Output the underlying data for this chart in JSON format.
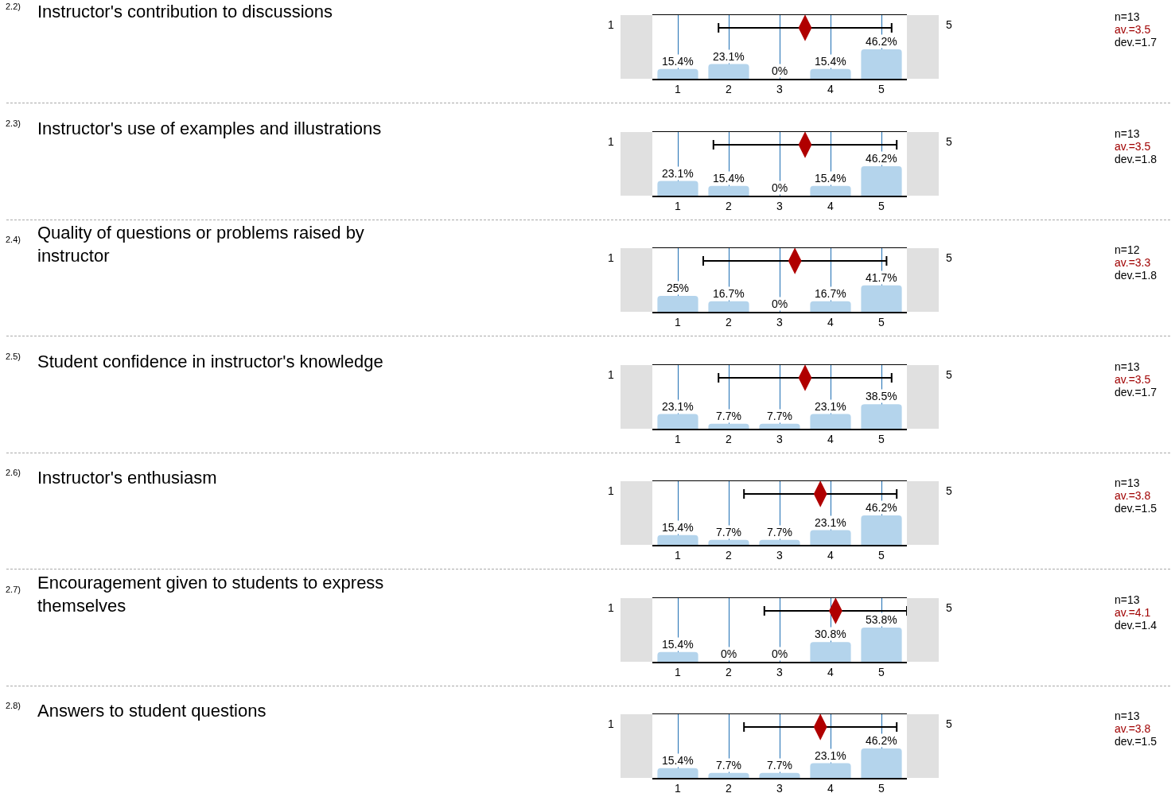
{
  "chart_data": [
    {
      "type": "bar",
      "annotations": [
        "2.2)",
        "Instructor's contribution to discussions",
        "1",
        "5",
        "n=13",
        "av.=3.5",
        "dev.=1.7"
      ],
      "x": [
        1,
        2,
        3,
        4,
        5
      ],
      "xlim": [
        0.5,
        5.5
      ],
      "xticks": [
        1,
        2,
        3,
        4,
        5
      ],
      "ylim": [
        0,
        100
      ],
      "grid": "x",
      "tick_labels": "x",
      "series": [
        {
          "type": "bar",
          "color": "#b4d4ec",
          "values": [
            15.4,
            23.1,
            0,
            15.4,
            46.2
          ],
          "value_labels": [
            "15.4%",
            "23.1%",
            "0%",
            "15.4%",
            "46.2%"
          ]
        },
        {
          "type": "scatter",
          "color": "#b00000",
          "x": [
            3.5
          ],
          "values": [
            80
          ],
          "xerrors": [
            1.7
          ]
        }
      ]
    },
    {
      "type": "bar",
      "annotations": [
        "2.3)",
        "Instructor's use of examples and illustrations",
        "1",
        "5",
        "n=13",
        "av.=3.5",
        "dev.=1.8"
      ],
      "x": [
        1,
        2,
        3,
        4,
        5
      ],
      "xlim": [
        0.5,
        5.5
      ],
      "xticks": [
        1,
        2,
        3,
        4,
        5
      ],
      "ylim": [
        0,
        100
      ],
      "grid": "x",
      "tick_labels": "x",
      "series": [
        {
          "type": "bar",
          "color": "#b4d4ec",
          "values": [
            23.1,
            15.4,
            0,
            15.4,
            46.2
          ],
          "value_labels": [
            "23.1%",
            "15.4%",
            "0%",
            "15.4%",
            "46.2%"
          ]
        },
        {
          "type": "scatter",
          "color": "#b00000",
          "x": [
            3.5
          ],
          "values": [
            80
          ],
          "xerrors": [
            1.8
          ]
        }
      ]
    },
    {
      "type": "bar",
      "annotations": [
        "2.4)",
        "Quality of questions or problems raised by instructor",
        "1",
        "5",
        "n=12",
        "av.=3.3",
        "dev.=1.8"
      ],
      "x": [
        1,
        2,
        3,
        4,
        5
      ],
      "xlim": [
        0.5,
        5.5
      ],
      "xticks": [
        1,
        2,
        3,
        4,
        5
      ],
      "ylim": [
        0,
        100
      ],
      "grid": "x",
      "tick_labels": "x",
      "series": [
        {
          "type": "bar",
          "color": "#b4d4ec",
          "values": [
            25,
            16.7,
            0,
            16.7,
            41.7
          ],
          "value_labels": [
            "25%",
            "16.7%",
            "0%",
            "16.7%",
            "41.7%"
          ]
        },
        {
          "type": "scatter",
          "color": "#b00000",
          "x": [
            3.3
          ],
          "values": [
            80
          ],
          "xerrors": [
            1.8
          ]
        }
      ]
    },
    {
      "type": "bar",
      "annotations": [
        "2.5)",
        "Student confidence in instructor's knowledge",
        "1",
        "5",
        "n=13",
        "av.=3.5",
        "dev.=1.7"
      ],
      "x": [
        1,
        2,
        3,
        4,
        5
      ],
      "xlim": [
        0.5,
        5.5
      ],
      "xticks": [
        1,
        2,
        3,
        4,
        5
      ],
      "ylim": [
        0,
        100
      ],
      "grid": "x",
      "tick_labels": "x",
      "series": [
        {
          "type": "bar",
          "color": "#b4d4ec",
          "values": [
            23.1,
            7.7,
            7.7,
            23.1,
            38.5
          ],
          "value_labels": [
            "23.1%",
            "7.7%",
            "7.7%",
            "23.1%",
            "38.5%"
          ]
        },
        {
          "type": "scatter",
          "color": "#b00000",
          "x": [
            3.5
          ],
          "values": [
            80
          ],
          "xerrors": [
            1.7
          ]
        }
      ]
    },
    {
      "type": "bar",
      "annotations": [
        "2.6)",
        "Instructor's enthusiasm",
        "1",
        "5",
        "n=13",
        "av.=3.8",
        "dev.=1.5"
      ],
      "x": [
        1,
        2,
        3,
        4,
        5
      ],
      "xlim": [
        0.5,
        5.5
      ],
      "xticks": [
        1,
        2,
        3,
        4,
        5
      ],
      "ylim": [
        0,
        100
      ],
      "grid": "x",
      "tick_labels": "x",
      "series": [
        {
          "type": "bar",
          "color": "#b4d4ec",
          "values": [
            15.4,
            7.7,
            7.7,
            23.1,
            46.2
          ],
          "value_labels": [
            "15.4%",
            "7.7%",
            "7.7%",
            "23.1%",
            "46.2%"
          ]
        },
        {
          "type": "scatter",
          "color": "#b00000",
          "x": [
            3.8
          ],
          "values": [
            80
          ],
          "xerrors": [
            1.5
          ]
        }
      ]
    },
    {
      "type": "bar",
      "annotations": [
        "2.7)",
        "Encouragement given to students to express themselves",
        "1",
        "5",
        "n=13",
        "av.=4.1",
        "dev.=1.4"
      ],
      "x": [
        1,
        2,
        3,
        4,
        5
      ],
      "xlim": [
        0.5,
        5.5
      ],
      "xticks": [
        1,
        2,
        3,
        4,
        5
      ],
      "ylim": [
        0,
        100
      ],
      "grid": "x",
      "tick_labels": "x",
      "series": [
        {
          "type": "bar",
          "color": "#b4d4ec",
          "values": [
            15.4,
            0,
            0,
            30.8,
            53.8
          ],
          "value_labels": [
            "15.4%",
            "0%",
            "0%",
            "30.8%",
            "53.8%"
          ]
        },
        {
          "type": "scatter",
          "color": "#b00000",
          "x": [
            4.1
          ],
          "values": [
            80
          ],
          "xerrors": [
            1.4
          ]
        }
      ]
    },
    {
      "type": "bar",
      "annotations": [
        "2.8)",
        "Answers to student questions",
        "1",
        "5",
        "n=13",
        "av.=3.8",
        "dev.=1.5"
      ],
      "x": [
        1,
        2,
        3,
        4,
        5
      ],
      "xlim": [
        0.5,
        5.5
      ],
      "xticks": [
        1,
        2,
        3,
        4,
        5
      ],
      "ylim": [
        0,
        100
      ],
      "grid": "x",
      "tick_labels": "x",
      "series": [
        {
          "type": "bar",
          "color": "#b4d4ec",
          "values": [
            15.4,
            7.7,
            7.7,
            23.1,
            46.2
          ],
          "value_labels": [
            "15.4%",
            "7.7%",
            "7.7%",
            "23.1%",
            "46.2%"
          ]
        },
        {
          "type": "scatter",
          "color": "#b00000",
          "x": [
            3.8
          ],
          "values": [
            80
          ],
          "xerrors": [
            1.5
          ]
        }
      ]
    }
  ]
}
